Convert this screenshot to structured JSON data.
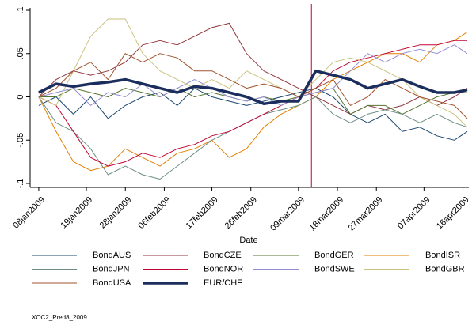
{
  "chart_data": {
    "type": "line",
    "x_label": "Date",
    "note": "XOC2_Pred8_2009",
    "x": [
      "2009-01-08",
      "2009-01-12",
      "2009-01-16",
      "2009-01-20",
      "2009-01-24",
      "2009-01-28",
      "2009-02-01",
      "2009-02-05",
      "2009-02-09",
      "2009-02-13",
      "2009-02-17",
      "2009-02-21",
      "2009-02-25",
      "2009-03-01",
      "2009-03-05",
      "2009-03-09",
      "2009-03-13",
      "2009-03-17",
      "2009-03-21",
      "2009-03-25",
      "2009-03-29",
      "2009-04-02",
      "2009-04-06",
      "2009-04-10",
      "2009-04-14",
      "2009-04-17"
    ],
    "xlim": [
      "2009-01-06",
      "2009-04-17"
    ],
    "xticks": [
      {
        "value": "2009-01-08",
        "label": "08jan2009"
      },
      {
        "value": "2009-01-19",
        "label": "19jan2009"
      },
      {
        "value": "2009-01-28",
        "label": "28jan2009"
      },
      {
        "value": "2009-02-06",
        "label": "06feb2009"
      },
      {
        "value": "2009-02-17",
        "label": "17feb2009"
      },
      {
        "value": "2009-02-26",
        "label": "26feb2009"
      },
      {
        "value": "2009-03-09",
        "label": "09mar2009"
      },
      {
        "value": "2009-03-18",
        "label": "18mar2009"
      },
      {
        "value": "2009-03-27",
        "label": "27mar2009"
      },
      {
        "value": "2009-04-07",
        "label": "07apr2009"
      },
      {
        "value": "2009-04-16",
        "label": "16apr2009"
      }
    ],
    "ylim": [
      -0.1,
      0.1
    ],
    "yticks": [
      {
        "value": -0.1,
        "label": "-.1"
      },
      {
        "value": -0.05,
        "label": "-.05"
      },
      0,
      {
        "value": 0.05,
        "label": ".05"
      },
      {
        "value": 0.1,
        "label": ".1"
      }
    ],
    "reference_line_x": "2009-03-12",
    "reference_line_color": "#c10534",
    "series": [
      {
        "name": "BondAUS",
        "color": "#1a476f",
        "width": 1,
        "values": [
          -0.01,
          0.0,
          -0.02,
          0.0,
          -0.025,
          -0.01,
          0.0,
          0.005,
          -0.01,
          0.01,
          0.0,
          -0.005,
          -0.01,
          -0.005,
          0.0,
          0.005,
          0.01,
          0.0,
          -0.02,
          -0.03,
          -0.02,
          -0.04,
          -0.035,
          -0.045,
          -0.05,
          -0.04
        ]
      },
      {
        "name": "BondCZE",
        "color": "#90353b",
        "width": 1,
        "values": [
          0,
          0.02,
          0.03,
          0.025,
          0.03,
          0.04,
          0.06,
          0.065,
          0.06,
          0.07,
          0.08,
          0.085,
          0.05,
          0.03,
          0.02,
          0.01,
          0.0,
          -0.01,
          -0.02,
          -0.01,
          -0.015,
          -0.01,
          0.0,
          -0.01,
          0.0,
          0.01
        ]
      },
      {
        "name": "BondGER",
        "color": "#55752f",
        "width": 1,
        "values": [
          0,
          0.0,
          0.01,
          0.005,
          0.0,
          0.01,
          0.005,
          0.0,
          0.01,
          0.0,
          0.005,
          0.0,
          -0.005,
          0.0,
          -0.005,
          0.0,
          0.005,
          0.01,
          -0.02,
          -0.01,
          -0.01,
          -0.02,
          -0.01,
          0.0,
          0.005,
          0.005
        ]
      },
      {
        "name": "BondISR",
        "color": "#e37e00",
        "width": 1,
        "values": [
          0,
          -0.04,
          -0.075,
          -0.085,
          -0.08,
          -0.06,
          -0.07,
          -0.08,
          -0.065,
          -0.06,
          -0.05,
          -0.07,
          -0.06,
          -0.035,
          -0.02,
          -0.01,
          0.0,
          0.02,
          0.03,
          0.04,
          0.05,
          0.05,
          0.04,
          0.06,
          0.065,
          0.075
        ]
      },
      {
        "name": "BondJPN",
        "color": "#6e8e84",
        "width": 1,
        "values": [
          0,
          -0.03,
          -0.04,
          -0.06,
          -0.09,
          -0.08,
          -0.09,
          -0.095,
          -0.08,
          -0.065,
          -0.05,
          -0.04,
          -0.03,
          -0.02,
          -0.015,
          -0.01,
          0.0,
          -0.02,
          -0.03,
          -0.02,
          -0.015,
          -0.02,
          -0.03,
          -0.02,
          -0.03,
          -0.035
        ]
      },
      {
        "name": "BondNOR",
        "color": "#c10534",
        "width": 1,
        "values": [
          0,
          -0.01,
          -0.04,
          -0.07,
          -0.08,
          -0.075,
          -0.065,
          -0.07,
          -0.06,
          -0.055,
          -0.045,
          -0.04,
          -0.03,
          -0.02,
          -0.01,
          0.0,
          0.01,
          0.03,
          0.04,
          0.045,
          0.05,
          0.055,
          0.06,
          0.06,
          0.065,
          0.065
        ]
      },
      {
        "name": "BondSWE",
        "color": "#938dd2",
        "width": 1,
        "values": [
          0,
          0.005,
          0.01,
          -0.01,
          0.005,
          0.0,
          0.015,
          0.0,
          0.01,
          0.02,
          0.01,
          0.0,
          -0.005,
          0.0,
          -0.01,
          0.0,
          0.005,
          0.01,
          0.03,
          0.05,
          0.04,
          0.05,
          0.055,
          0.05,
          0.06,
          0.05
        ]
      },
      {
        "name": "BondGBR",
        "color": "#cac27e",
        "width": 1,
        "values": [
          0,
          -0.01,
          0.03,
          0.07,
          0.09,
          0.09,
          0.05,
          0.03,
          0.02,
          0.01,
          0.02,
          0.01,
          0.03,
          0.02,
          0.01,
          0.0,
          0.02,
          0.04,
          0.045,
          0.04,
          0.03,
          0.02,
          0.0,
          -0.01,
          -0.02,
          -0.035
        ]
      },
      {
        "name": "BondUSA",
        "color": "#a0522d",
        "width": 1,
        "values": [
          0,
          0.01,
          0.03,
          0.04,
          0.02,
          0.05,
          0.04,
          0.05,
          0.045,
          0.03,
          0.03,
          0.02,
          0.01,
          0.015,
          0.01,
          0.0,
          0.01,
          0.02,
          -0.01,
          0.0,
          0.02,
          0.01,
          0.0,
          -0.005,
          -0.01,
          -0.025
        ]
      },
      {
        "name": "EUR/CHF",
        "color": "#1a2d5c",
        "width": 3.5,
        "values": [
          0.005,
          0.015,
          0.012,
          0.015,
          0.017,
          0.02,
          0.015,
          0.01,
          0.005,
          0.012,
          0.01,
          0.005,
          0.0,
          -0.008,
          -0.005,
          -0.005,
          0.03,
          0.025,
          0.02,
          0.01,
          0.015,
          0.02,
          0.012,
          0.005,
          0.005,
          0.008
        ]
      }
    ]
  }
}
